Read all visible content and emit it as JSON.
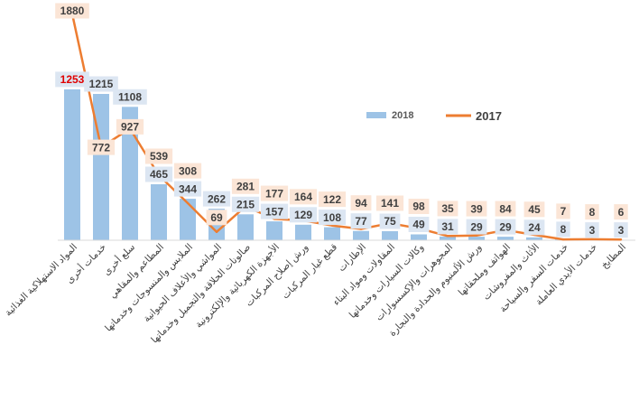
{
  "chart_data": {
    "type": "bar",
    "categories": [
      "المواد الاستهلاكية الغذائية",
      "خدمات أخرى",
      "سلع أخرى",
      "المطاعم والمقاهي",
      "الملابس والمنسوجات وخدماتها",
      "المواشي والأعلاف الحيوانية",
      "صالونات الحلاقة والتجميل وخدماتها",
      "الأجهزة الكهربائية والإلكترونية",
      "ورش إصلاح المركبات",
      "قطع غيار المركبات",
      "الإطارات",
      "المقاولات ومواد البناء",
      "وكالات السيارات وخدماتها",
      "المجوهرات والإكسسوارات",
      "ورش الألمنيوم والحدادة والنجارة",
      "الهواتف وملحقاتها",
      "الأثاث والمفروشات",
      "خدمات السفر والسياحة",
      "خدمات الأيدي العاملة",
      "المطابخ"
    ],
    "series": [
      {
        "name": "2018",
        "kind": "bar",
        "color": "#9dc3e6",
        "values": [
          1253,
          1215,
          1108,
          465,
          344,
          262,
          215,
          157,
          129,
          108,
          77,
          75,
          49,
          31,
          29,
          29,
          24,
          8,
          3,
          3
        ]
      },
      {
        "name": "2017",
        "kind": "line",
        "color": "#ed7d31",
        "values": [
          1880,
          772,
          927,
          539,
          308,
          69,
          281,
          177,
          164,
          122,
          94,
          141,
          98,
          35,
          39,
          84,
          45,
          7,
          8,
          6
        ]
      }
    ],
    "highlight": {
      "series": 0,
      "index": 0,
      "color": "#e00000"
    },
    "legend_position": "right-middle",
    "grid": false,
    "ylim": [
      0,
      1950
    ]
  }
}
